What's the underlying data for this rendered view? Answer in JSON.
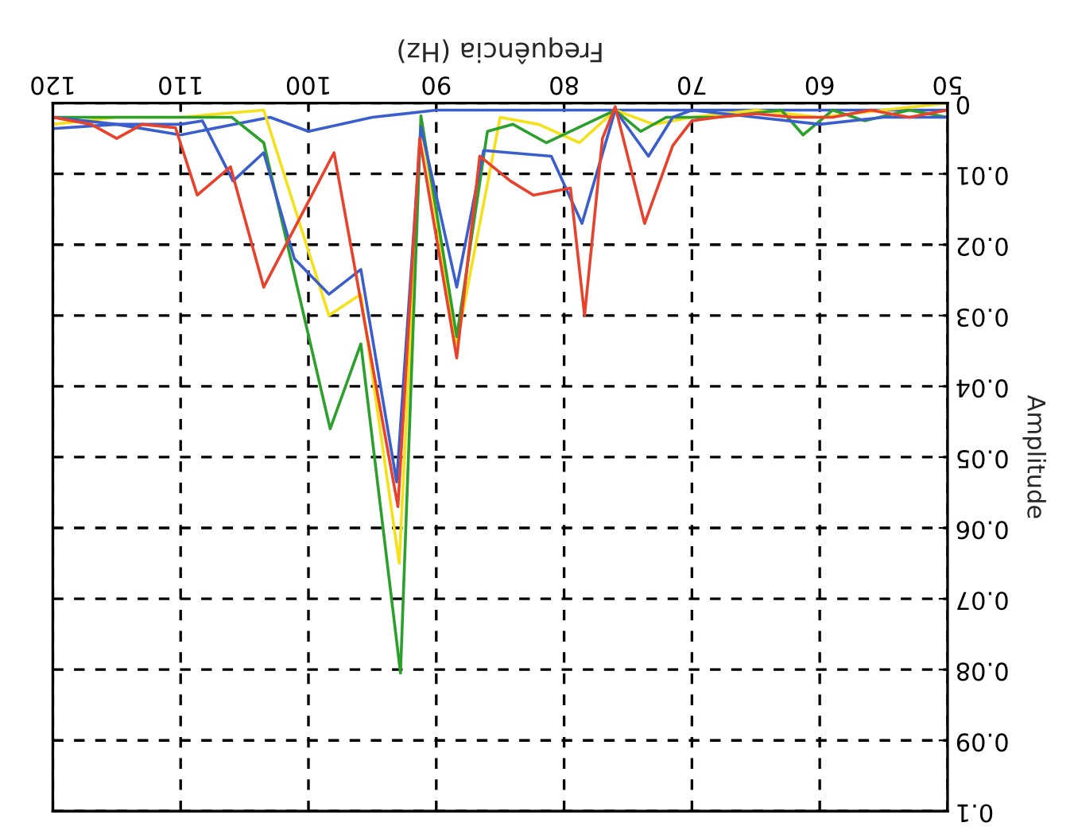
{
  "chart_data": {
    "type": "line",
    "xlabel": "Frequência (Hz)",
    "ylabel": "Amplitude",
    "xlim": [
      120,
      50
    ],
    "ylim": [
      0.1,
      0
    ],
    "xticks": [
      50,
      60,
      70,
      80,
      90,
      100,
      110,
      120
    ],
    "yticks": [
      0,
      0.01,
      0.02,
      0.03,
      0.04,
      0.05,
      0.06,
      0.07,
      0.08,
      0.09,
      0.1
    ],
    "grid": true,
    "series": [
      {
        "color": "#3a5fcd",
        "x": [
          50,
          60,
          70,
          80,
          90,
          95,
          100,
          103,
          110,
          115,
          120
        ],
        "values": [
          0.001,
          0.001,
          0.001,
          0.001,
          0.001,
          0.002,
          0.004,
          0.002,
          0.0045,
          0.003,
          0.0036
        ]
      },
      {
        "color": "#f5e11a",
        "x": [
          50,
          55,
          60,
          65,
          70,
          73,
          76,
          78.8,
          82,
          85,
          88.4,
          91.2,
          92.9,
          95.9,
          98.4,
          103.5,
          110,
          115,
          120
        ],
        "values": [
          0.0,
          0.001,
          0.002,
          0.001,
          0.002,
          0.003,
          0.001,
          0.0056,
          0.003,
          0.002,
          0.034,
          0.003,
          0.065,
          0.027,
          0.03,
          0.001,
          0.002,
          0.002,
          0.003
        ]
      },
      {
        "color": "#2ca02c",
        "x": [
          50,
          53,
          56.5,
          59,
          61.3,
          63,
          68,
          72,
          74,
          76,
          81.4,
          84,
          86,
          88.4,
          91.2,
          92.8,
          95.9,
          98.3,
          103.5,
          106,
          110,
          115,
          120
        ],
        "values": [
          0.002,
          0.001,
          0.0025,
          0.001,
          0.0045,
          0.001,
          0.002,
          0.002,
          0.004,
          0.001,
          0.0056,
          0.003,
          0.004,
          0.033,
          0.0018,
          0.0805,
          0.034,
          0.046,
          0.0056,
          0.002,
          0.002,
          0.002,
          0.002
        ]
      },
      {
        "color": "#3a5fcd",
        "x": [
          50,
          55,
          60,
          65,
          70,
          71.5,
          73.4,
          76,
          78.6,
          81,
          86.3,
          88.4,
          91.2,
          93.1,
          95.9,
          98.4,
          101.1,
          103.5,
          105.9,
          108.3,
          110,
          115,
          120
        ],
        "values": [
          0.002,
          0.002,
          0.003,
          0.002,
          0.001,
          0.002,
          0.0075,
          0.001,
          0.017,
          0.0075,
          0.0067,
          0.026,
          0.0034,
          0.0535,
          0.0235,
          0.027,
          0.022,
          0.007,
          0.011,
          0.0025,
          0.003,
          0.003,
          0.002
        ]
      },
      {
        "color": "#e8412c",
        "x": [
          50,
          53,
          56,
          59,
          62,
          65,
          68,
          70,
          71.5,
          73.7,
          76,
          77,
          78.4,
          79.5,
          82.4,
          84.2,
          86.6,
          88.4,
          91.3,
          93,
          98,
          103.5,
          106.1,
          108.7,
          110.4,
          113,
          115,
          117,
          120
        ],
        "values": [
          0.001,
          0.002,
          0.001,
          0.002,
          0.002,
          0.0015,
          0.002,
          0.0025,
          0.006,
          0.017,
          0.0005,
          0.005,
          0.03,
          0.012,
          0.013,
          0.011,
          0.0075,
          0.036,
          0.005,
          0.057,
          0.007,
          0.026,
          0.009,
          0.013,
          0.0035,
          0.003,
          0.005,
          0.003,
          0.002
        ]
      }
    ]
  }
}
